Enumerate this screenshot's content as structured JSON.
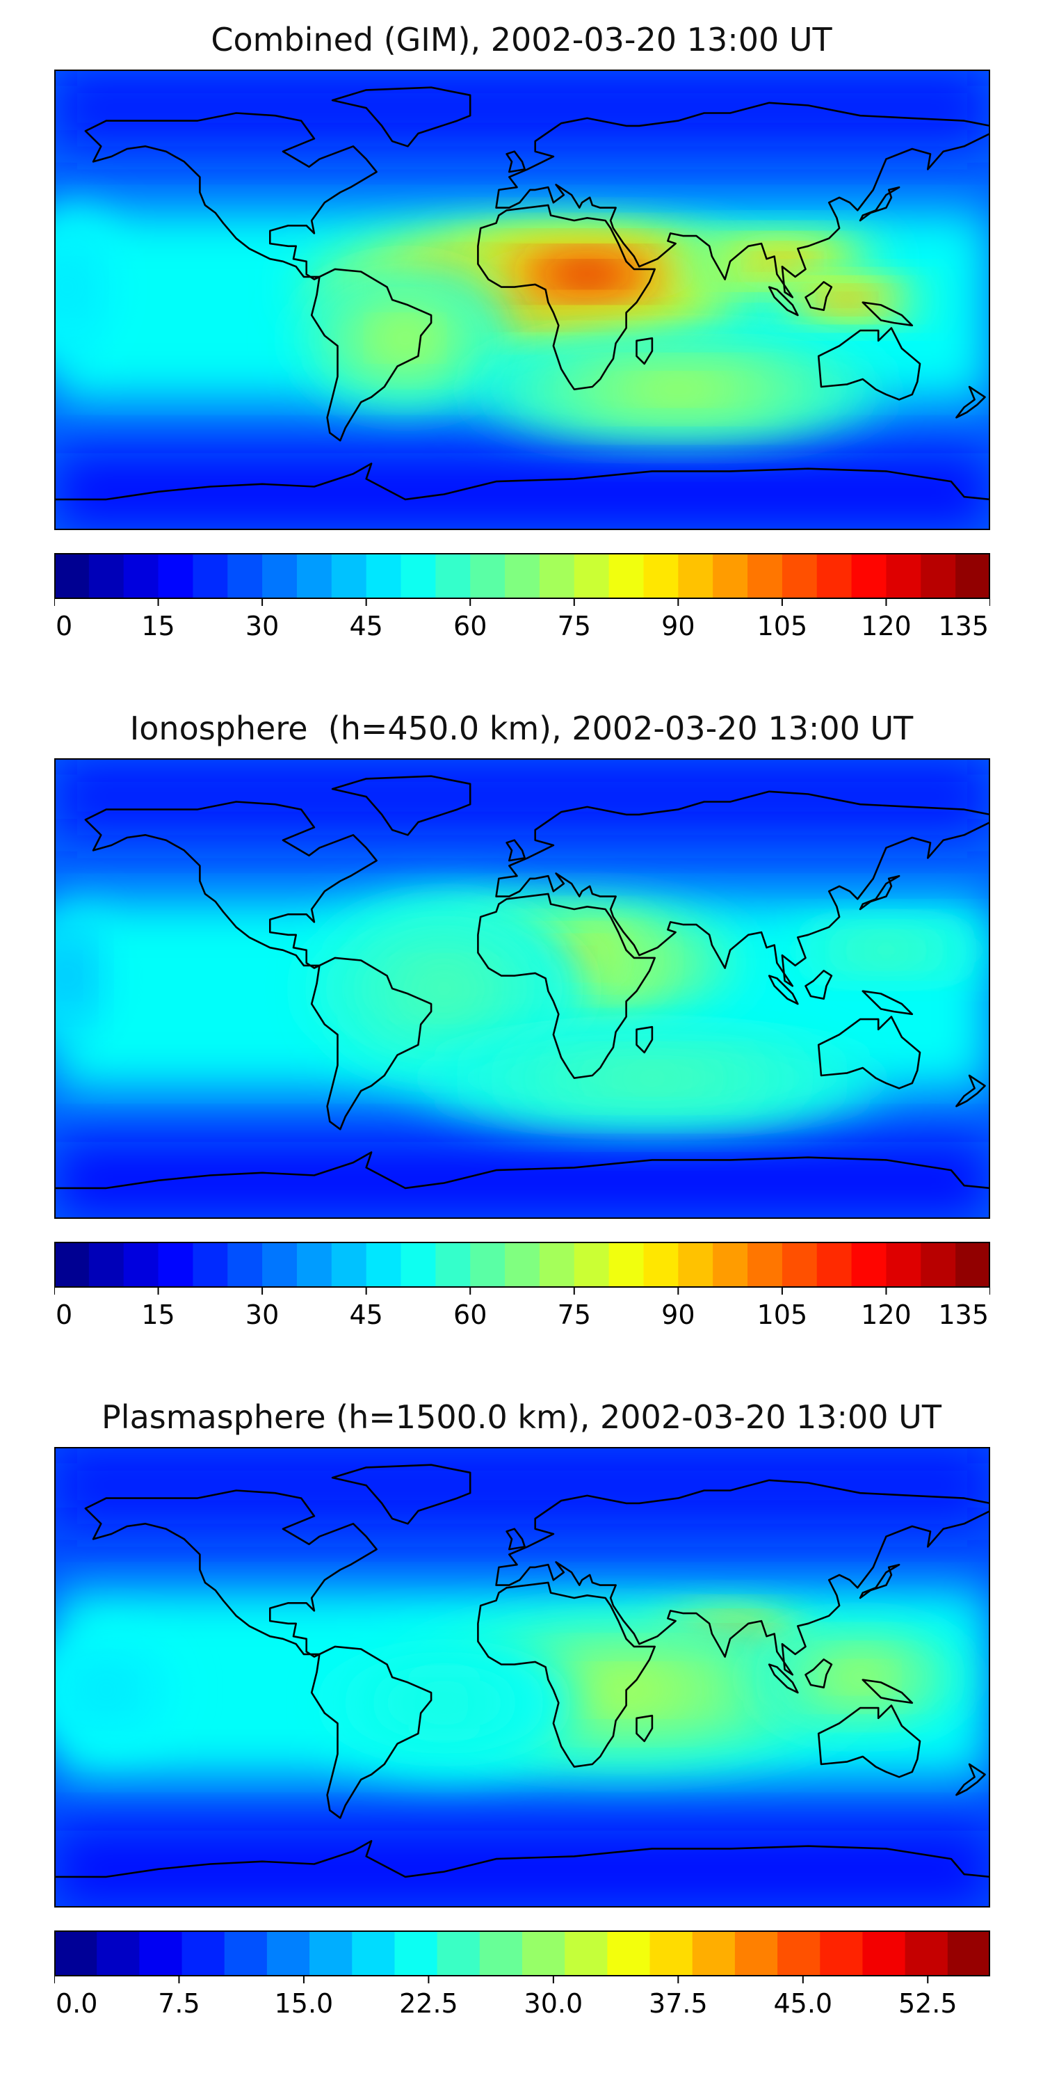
{
  "panels": [
    {
      "title": "Combined (GIM), 2002-03-20 13:00 UT",
      "colorbar": {
        "min": 0,
        "max": 135,
        "levels": 27,
        "ticks": [
          "0",
          "15",
          "30",
          "45",
          "60",
          "75",
          "90",
          "105",
          "120",
          "135"
        ]
      },
      "blobs": [
        {
          "lon": 5,
          "lat": 5,
          "rx": 90,
          "ry": 22,
          "level": 0.85
        },
        {
          "lon": 25,
          "lat": 10,
          "rx": 60,
          "ry": 15,
          "level": 0.95
        },
        {
          "lon": 100,
          "lat": 15,
          "rx": 40,
          "ry": 10,
          "level": 0.75
        },
        {
          "lon": 125,
          "lat": 0,
          "rx": 30,
          "ry": 8,
          "level": 0.8
        },
        {
          "lon": -45,
          "lat": -15,
          "rx": 40,
          "ry": 25,
          "level": 0.55
        },
        {
          "lon": 60,
          "lat": -35,
          "rx": 80,
          "ry": 18,
          "level": 0.55
        },
        {
          "lon": -175,
          "lat": 5,
          "rx": 20,
          "ry": 30,
          "level": 0.35
        }
      ]
    },
    {
      "title": "Ionosphere  (h=450.0 km), 2002-03-20 13:00 UT",
      "colorbar": {
        "min": 0,
        "max": 135,
        "levels": 27,
        "ticks": [
          "0",
          "15",
          "30",
          "45",
          "60",
          "75",
          "90",
          "105",
          "120",
          "135"
        ]
      },
      "blobs": [
        {
          "lon": 15,
          "lat": 10,
          "rx": 70,
          "ry": 22,
          "level": 0.62
        },
        {
          "lon": 15,
          "lat": 12,
          "rx": 35,
          "ry": 12,
          "level": 0.72
        },
        {
          "lon": -30,
          "lat": 0,
          "rx": 55,
          "ry": 35,
          "level": 0.45
        },
        {
          "lon": 140,
          "lat": 15,
          "rx": 40,
          "ry": 10,
          "level": 0.45
        },
        {
          "lon": 50,
          "lat": -35,
          "rx": 90,
          "ry": 18,
          "level": 0.45
        },
        {
          "lon": -175,
          "lat": 5,
          "rx": 15,
          "ry": 25,
          "level": 0.3
        }
      ]
    },
    {
      "title": "Plasmasphere (h=1500.0 km), 2002-03-20 13:00 UT",
      "colorbar": {
        "min": 0,
        "max": 56.25,
        "levels": 22,
        "ticks": [
          "0.0",
          "7.5",
          "15.0",
          "22.5",
          "30.0",
          "37.5",
          "45.0",
          "52.5"
        ]
      },
      "blobs": [
        {
          "lon": 80,
          "lat": 10,
          "rx": 30,
          "ry": 14,
          "level": 0.9
        },
        {
          "lon": 40,
          "lat": -5,
          "rx": 90,
          "ry": 28,
          "level": 0.55
        },
        {
          "lon": 130,
          "lat": 0,
          "rx": 40,
          "ry": 18,
          "level": 0.55
        },
        {
          "lon": -30,
          "lat": -10,
          "rx": 50,
          "ry": 25,
          "level": 0.4
        },
        {
          "lon": -160,
          "lat": -5,
          "rx": 30,
          "ry": 20,
          "level": 0.35
        }
      ]
    }
  ]
}
